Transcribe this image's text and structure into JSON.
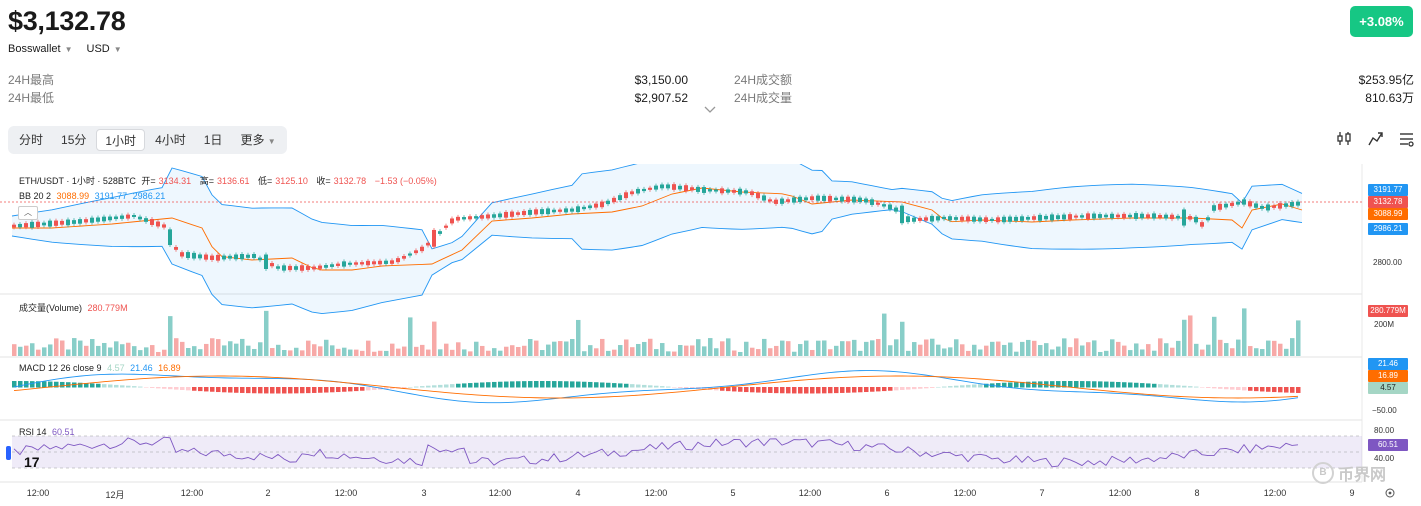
{
  "header": {
    "price": "$3,132.78",
    "change_badge": "+3.08%",
    "wallet": "Bosswallet",
    "currency": "USD"
  },
  "stats": {
    "left": [
      {
        "label": "24H最高",
        "value": "$3,150.00"
      },
      {
        "label": "24H最低",
        "value": "$2,907.52"
      }
    ],
    "right": [
      {
        "label": "24H成交额",
        "value": "$253.95亿"
      },
      {
        "label": "24H成交量",
        "value": "810.63万"
      }
    ]
  },
  "tabs": [
    "分时",
    "15分",
    "1小时",
    "4小时",
    "1日",
    "更多"
  ],
  "active_tab": "1小时",
  "toolbar_icons": [
    "indicator-settings-icon",
    "chart-type-icon",
    "settings-icon"
  ],
  "chart": {
    "symbol_line": "ETH/USDT · 1小时 · 528BTC",
    "ohlc": [
      {
        "label": "开=",
        "value": "3134.31"
      },
      {
        "label": "高=",
        "value": "3136.61"
      },
      {
        "label": "低=",
        "value": "3125.10"
      },
      {
        "label": "收=",
        "value": "3132.78"
      },
      {
        "label": "",
        "value": "−1.53 (−0.05%)"
      }
    ],
    "bb_legend": {
      "name": "BB 20 2",
      "mid": "3088.99",
      "upper": "3191.77",
      "lower": "2986.21"
    },
    "volume_legend": {
      "name": "成交量(Volume)",
      "value": "280.779M"
    },
    "macd_legend": {
      "name": "MACD 12 26 close 9",
      "hist": "4.57",
      "macd": "21.46",
      "signal": "16.89"
    },
    "rsi_legend": {
      "name": "RSI 14",
      "value": "60.51"
    },
    "price_tags": [
      {
        "value": "3191.77",
        "color": "#2196f3"
      },
      {
        "value": "3132.78",
        "color": "#ef5350"
      },
      {
        "value": "3088.99",
        "color": "#ff6d00"
      },
      {
        "value": "2986.21",
        "color": "#2196f3"
      }
    ],
    "price_axis_label": "2800.00",
    "volume_tags": [
      {
        "value": "280.779M",
        "color": "#ef5350"
      }
    ],
    "volume_axis_label": "200M",
    "macd_tags": [
      {
        "value": "21.46",
        "color": "#2196f3"
      },
      {
        "value": "16.89",
        "color": "#ff6d00"
      },
      {
        "value": "4.57",
        "color": "#a5d6c5"
      }
    ],
    "macd_axis_label": "−50.00",
    "rsi_tags": [
      {
        "value": "60.51",
        "color": "#7e57c2"
      }
    ],
    "rsi_axis_labels": [
      "80.00",
      "40.00"
    ],
    "x_labels": [
      "12:00",
      "12月",
      "12:00",
      "2",
      "12:00",
      "3",
      "12:00",
      "4",
      "12:00",
      "5",
      "12:00",
      "6",
      "12:00",
      "7",
      "12:00",
      "8",
      "12:00",
      "9"
    ],
    "watermark": "币界网",
    "tv_logo": "17"
  }
}
